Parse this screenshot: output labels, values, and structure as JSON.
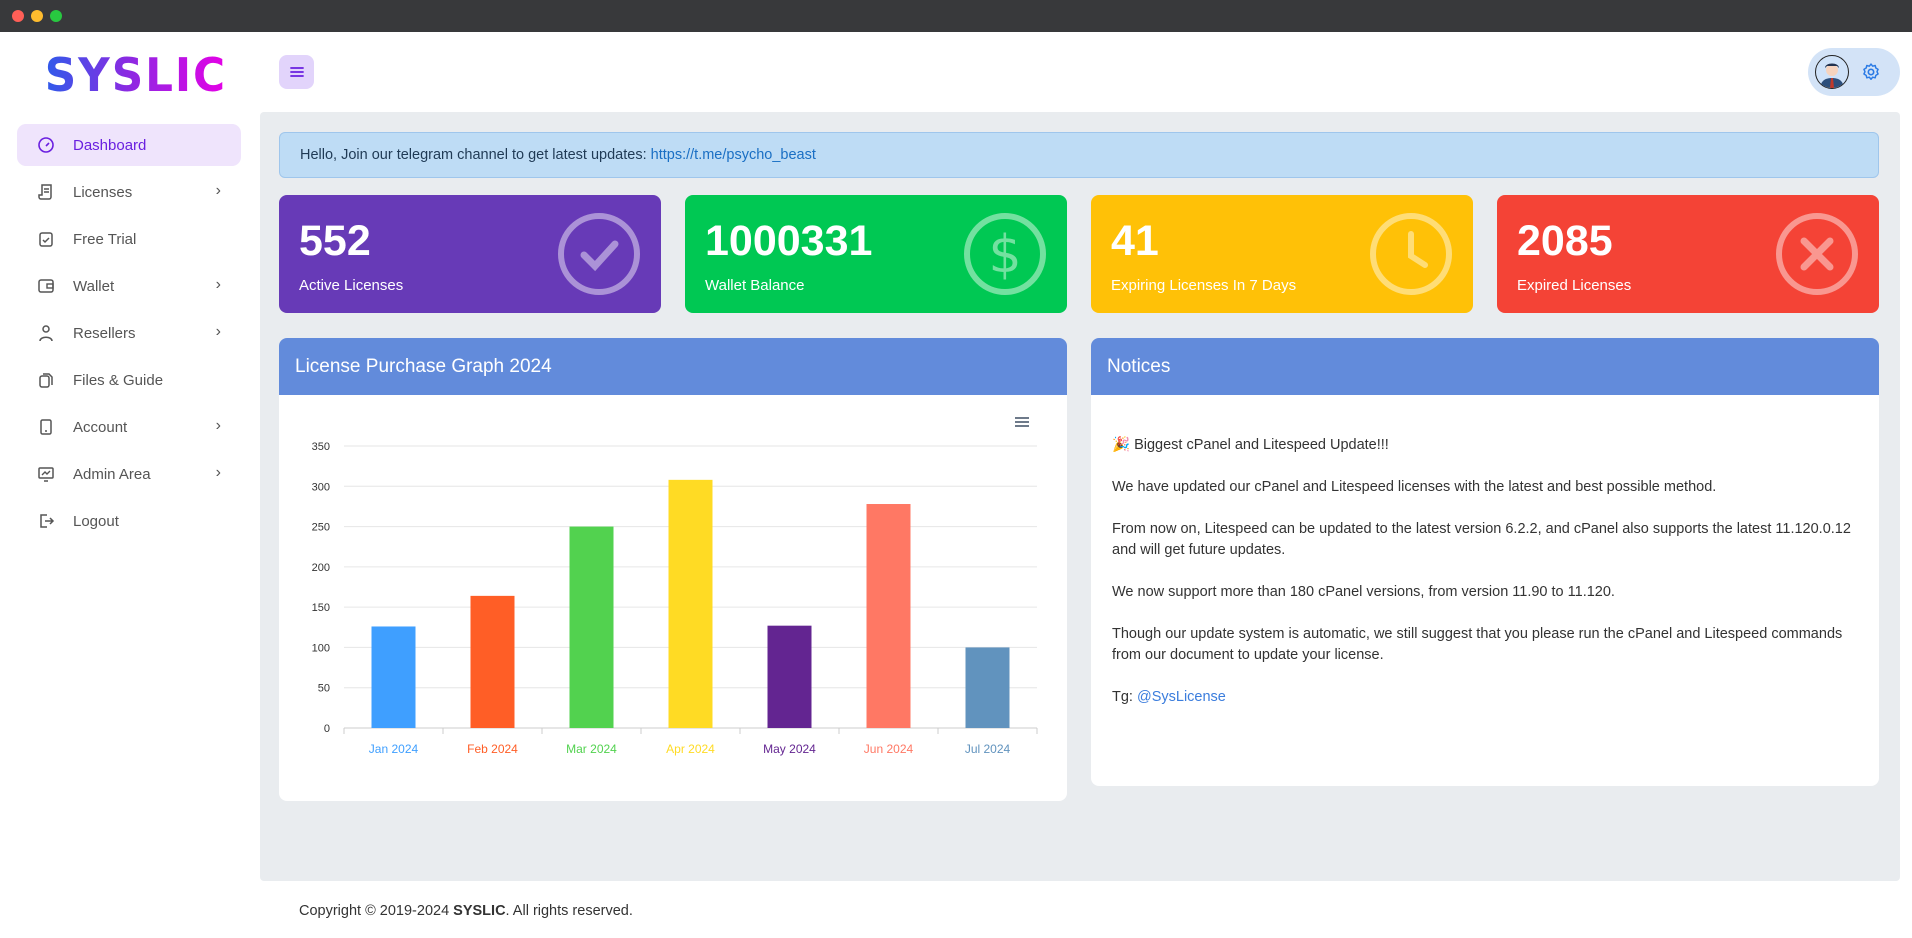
{
  "brand": {
    "logo": "SYSLIC"
  },
  "sidebar": {
    "items": [
      {
        "label": "Dashboard",
        "icon": "dashboard-icon",
        "active": true,
        "submenu": false
      },
      {
        "label": "Licenses",
        "icon": "scroll-icon",
        "submenu": true
      },
      {
        "label": "Free Trial",
        "icon": "clipboard-check-icon",
        "submenu": false
      },
      {
        "label": "Wallet",
        "icon": "wallet-icon",
        "submenu": true
      },
      {
        "label": "Resellers",
        "icon": "user-icon",
        "submenu": true
      },
      {
        "label": "Files & Guide",
        "icon": "files-icon",
        "submenu": false
      },
      {
        "label": "Account",
        "icon": "tablet-icon",
        "submenu": true
      },
      {
        "label": "Admin Area",
        "icon": "monitor-chart-icon",
        "submenu": true
      },
      {
        "label": "Logout",
        "icon": "logout-icon",
        "submenu": false
      }
    ]
  },
  "alert": {
    "text": "Hello, Join our telegram channel to get latest updates: ",
    "link": "https://t.me/psycho_beast"
  },
  "stats": [
    {
      "value": "552",
      "label": "Active Licenses",
      "color": "#673ab7",
      "icon": "check-circle-icon"
    },
    {
      "value": "1000331",
      "label": "Wallet Balance",
      "color": "#00c853",
      "icon": "dollar-circle-icon"
    },
    {
      "value": "41",
      "label": "Expiring Licenses In 7 Days",
      "color": "#ffc107",
      "icon": "clock-icon"
    },
    {
      "value": "2085",
      "label": "Expired Licenses",
      "color": "#f44336",
      "icon": "x-circle-icon"
    }
  ],
  "chart_card": {
    "title": "License Purchase Graph 2024"
  },
  "chart_data": {
    "type": "bar",
    "categories": [
      "Jan 2024",
      "Feb 2024",
      "Mar 2024",
      "Apr 2024",
      "May 2024",
      "Jun 2024",
      "Jul 2024"
    ],
    "values": [
      126,
      164,
      250,
      308,
      127,
      278,
      100
    ],
    "colors": [
      "#3f9fff",
      "#ff5e26",
      "#52d24f",
      "#ffdb24",
      "#632591",
      "#ff7864",
      "#6193be"
    ],
    "yticks": [
      0,
      50,
      100,
      150,
      200,
      250,
      300,
      350
    ],
    "ylim": [
      0,
      350
    ],
    "grid": true,
    "title": "",
    "xlabel": "",
    "ylabel": ""
  },
  "notices": {
    "title": "Notices",
    "heading": "🎉 Biggest cPanel and Litespeed Update!!!",
    "paragraphs": [
      "We have updated our cPanel and Litespeed licenses with the latest and best possible method.",
      "From now on, Litespeed can be updated to the latest version 6.2.2, and cPanel also supports the latest 11.120.0.12 and will get future updates.",
      "We now support more than 180 cPanel versions, from version 11.90 to 11.120.",
      "Though our update system is automatic, we still suggest that you please run the cPanel and Litespeed commands from our document to update your license."
    ],
    "tg_label": "Tg: ",
    "tg_link": "@SysLicense"
  },
  "footer": {
    "prefix": "Copyright © 2019-2024 ",
    "brand": "SYSLIC",
    "suffix": ". All rights reserved."
  }
}
